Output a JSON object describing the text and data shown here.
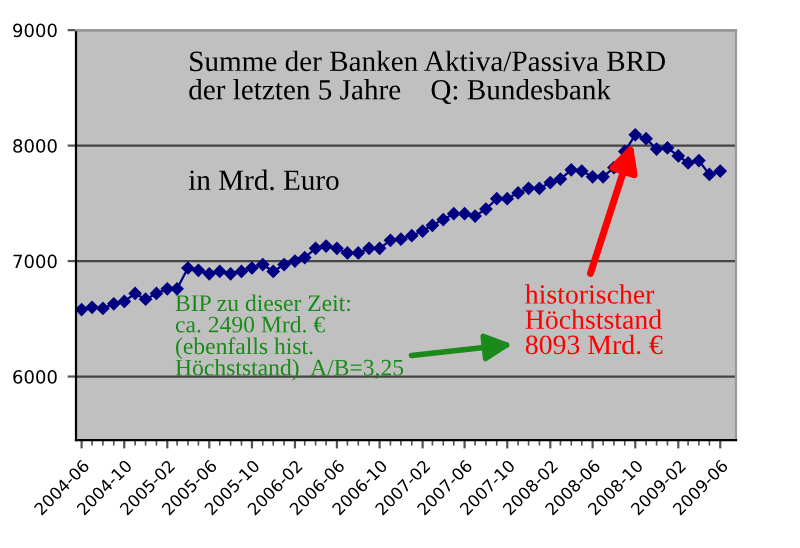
{
  "chart_data": {
    "type": "line",
    "title": "Summe der Banken Aktiva/Passiva BRD\nder letzten 5 Jahre    Q: Bundesbank",
    "subtitle": "in Mrd. Euro",
    "x": [
      "2004-06",
      "2004-07",
      "2004-08",
      "2004-09",
      "2004-10",
      "2004-11",
      "2004-12",
      "2005-01",
      "2005-02",
      "2005-03",
      "2005-04",
      "2005-05",
      "2005-06",
      "2005-07",
      "2005-08",
      "2005-09",
      "2005-10",
      "2005-11",
      "2005-12",
      "2006-01",
      "2006-02",
      "2006-03",
      "2006-04",
      "2006-05",
      "2006-06",
      "2006-07",
      "2006-08",
      "2006-09",
      "2006-10",
      "2006-11",
      "2006-12",
      "2007-01",
      "2007-02",
      "2007-03",
      "2007-04",
      "2007-05",
      "2007-06",
      "2007-07",
      "2007-08",
      "2007-09",
      "2007-10",
      "2007-11",
      "2007-12",
      "2008-01",
      "2008-02",
      "2008-03",
      "2008-04",
      "2008-05",
      "2008-06",
      "2008-07",
      "2008-08",
      "2008-09",
      "2008-10",
      "2008-11",
      "2008-12",
      "2009-01",
      "2009-02",
      "2009-03",
      "2009-04",
      "2009-05",
      "2009-06"
    ],
    "series": [
      {
        "color": "#000080",
        "values": [
          6580,
          6600,
          6590,
          6630,
          6650,
          6720,
          6670,
          6720,
          6760,
          6760,
          6940,
          6920,
          6890,
          6910,
          6890,
          6910,
          6940,
          6970,
          6910,
          6970,
          7000,
          7030,
          7110,
          7130,
          7110,
          7070,
          7070,
          7110,
          7110,
          7180,
          7190,
          7220,
          7260,
          7310,
          7360,
          7410,
          7410,
          7390,
          7450,
          7540,
          7540,
          7590,
          7630,
          7630,
          7680,
          7710,
          7790,
          7780,
          7730,
          7730,
          7810,
          7950,
          8093,
          8060,
          7970,
          7980,
          7910,
          7850,
          7870,
          7750,
          7780
        ]
      }
    ],
    "xlim": [
      "2004-05-16",
      "2009-07-16"
    ],
    "xticks": [
      "2004-06",
      "2004-10",
      "2005-02",
      "2005-06",
      "2005-10",
      "2006-02",
      "2006-06",
      "2006-10",
      "2007-02",
      "2007-06",
      "2007-10",
      "2008-02",
      "2008-06",
      "2008-10",
      "2009-02",
      "2009-06"
    ],
    "ylim": [
      5450,
      9000
    ],
    "yticks": [
      6000,
      7000,
      8000,
      9000
    ],
    "grid": "y",
    "marker": "diamond",
    "line_style": "solid",
    "legend": false,
    "annotations": [
      "BIP zu dieser Zeit:\nca. 2490 Mrd. €\n(ebenfalls hist.\nHöchststand)  A/B=3,25",
      {
        "text": "historischer\nHöchststand\n8093 Mrd. €",
        "x": "2008-10",
        "y": 8093
      }
    ]
  }
}
